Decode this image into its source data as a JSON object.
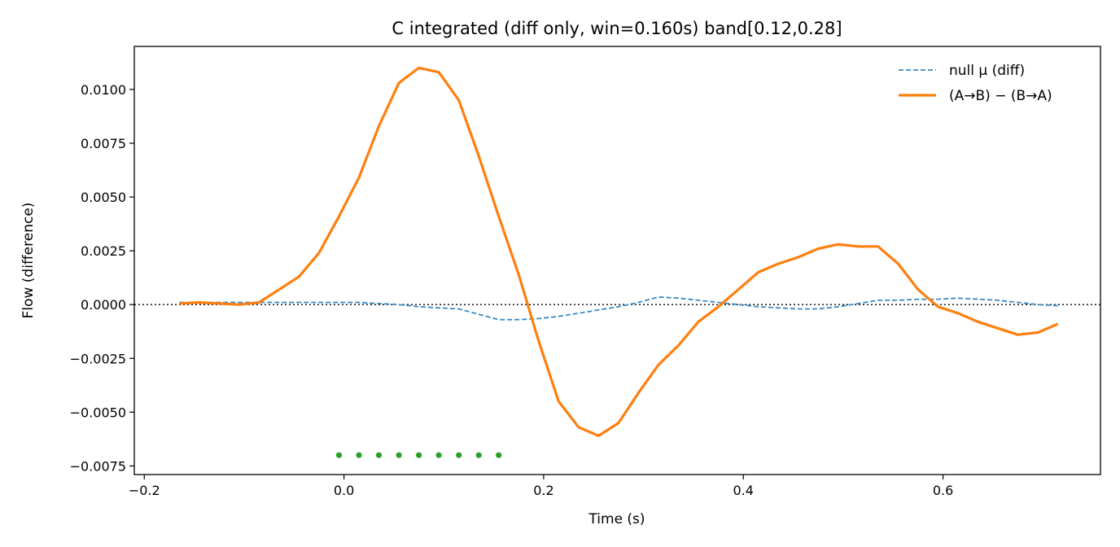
{
  "chart_data": {
    "type": "line",
    "title": "C integrated (diff only, win=0.160s)   band[0.12,0.28]",
    "xlabel": "Time (s)",
    "ylabel": "Flow (difference)",
    "xlim": [
      -0.21,
      0.7577
    ],
    "ylim": [
      -0.0079,
      0.012
    ],
    "x_ticks": [
      {
        "value": -0.2,
        "label": "−0.2"
      },
      {
        "value": 0.0,
        "label": "0.0"
      },
      {
        "value": 0.2,
        "label": "0.2"
      },
      {
        "value": 0.4,
        "label": "0.4"
      },
      {
        "value": 0.6,
        "label": "0.6"
      }
    ],
    "y_ticks": [
      {
        "value": 0.01,
        "label": "0.0100"
      },
      {
        "value": 0.0075,
        "label": "0.0075"
      },
      {
        "value": 0.005,
        "label": "0.0050"
      },
      {
        "value": 0.0025,
        "label": "0.0025"
      },
      {
        "value": 0.0,
        "label": "0.0000"
      },
      {
        "value": -0.0025,
        "label": "−0.0025"
      },
      {
        "value": -0.005,
        "label": "−0.0050"
      },
      {
        "value": -0.0075,
        "label": "−0.0075"
      }
    ],
    "grid": false,
    "legend_position": "top-right",
    "zero_line": {
      "y": 0,
      "style": "dotted",
      "color": "#000000"
    },
    "series": [
      {
        "name": "null μ (diff)",
        "style": "dashed",
        "color": "#3b8bc2",
        "x": [
          -0.165,
          -0.145,
          -0.125,
          -0.105,
          -0.085,
          -0.065,
          -0.045,
          -0.025,
          -0.005,
          0.015,
          0.035,
          0.055,
          0.075,
          0.095,
          0.115,
          0.135,
          0.155,
          0.175,
          0.195,
          0.215,
          0.235,
          0.255,
          0.275,
          0.295,
          0.315,
          0.335,
          0.355,
          0.375,
          0.395,
          0.415,
          0.435,
          0.455,
          0.475,
          0.495,
          0.515,
          0.535,
          0.555,
          0.575,
          0.595,
          0.615,
          0.635,
          0.655,
          0.675,
          0.695,
          0.715
        ],
        "y": [
          0.0001,
          0.0001,
          0.0001,
          0.0001,
          0.0001,
          0.0001,
          0.0001,
          0.0001,
          0.0001,
          0.0001,
          5e-05,
          0.0,
          -0.0001,
          -0.00015,
          -0.0002,
          -0.00045,
          -0.0007,
          -0.0007,
          -0.00065,
          -0.00055,
          -0.0004,
          -0.00025,
          -0.0001,
          0.0001,
          0.00035,
          0.0003,
          0.0002,
          0.0001,
          0.0,
          -0.0001,
          -0.00015,
          -0.0002,
          -0.0002,
          -0.0001,
          5e-05,
          0.0002,
          0.0002,
          0.00025,
          0.00025,
          0.0003,
          0.00025,
          0.0002,
          0.0001,
          0.0,
          -5e-05
        ]
      },
      {
        "name": "(A→B) − (B→A)",
        "style": "solid",
        "color": "#ff7f0e",
        "x": [
          -0.165,
          -0.145,
          -0.125,
          -0.105,
          -0.085,
          -0.065,
          -0.045,
          -0.025,
          -0.005,
          0.015,
          0.035,
          0.055,
          0.075,
          0.095,
          0.115,
          0.135,
          0.155,
          0.175,
          0.195,
          0.215,
          0.235,
          0.255,
          0.275,
          0.295,
          0.315,
          0.335,
          0.355,
          0.375,
          0.395,
          0.415,
          0.435,
          0.455,
          0.475,
          0.495,
          0.515,
          0.535,
          0.555,
          0.575,
          0.595,
          0.615,
          0.635,
          0.655,
          0.675,
          0.695,
          0.715
        ],
        "y": [
          5e-05,
          0.0001,
          5e-05,
          0.0,
          0.0001,
          0.0007,
          0.0013,
          0.0024,
          0.0041,
          0.0059,
          0.0083,
          0.0103,
          0.011,
          0.0108,
          0.0095,
          0.0069,
          0.0041,
          0.0014,
          -0.0017,
          -0.0045,
          -0.0057,
          -0.0061,
          -0.0055,
          -0.0041,
          -0.0028,
          -0.0019,
          -0.0008,
          -0.0001,
          0.0007,
          0.0015,
          0.0019,
          0.0022,
          0.0026,
          0.0028,
          0.0027,
          0.0027,
          0.0019,
          0.0007,
          -0.0001,
          -0.0004,
          -0.0008,
          -0.0011,
          -0.0014,
          -0.0013,
          -0.0009
        ]
      },
      {
        "style": "points",
        "color": "#2ca02c",
        "x": [
          -0.005,
          0.015,
          0.035,
          0.055,
          0.075,
          0.095,
          0.115,
          0.135,
          0.155
        ],
        "y": [
          -0.007,
          -0.007,
          -0.007,
          -0.007,
          -0.007,
          -0.007,
          -0.007,
          -0.007,
          -0.007
        ]
      }
    ]
  }
}
